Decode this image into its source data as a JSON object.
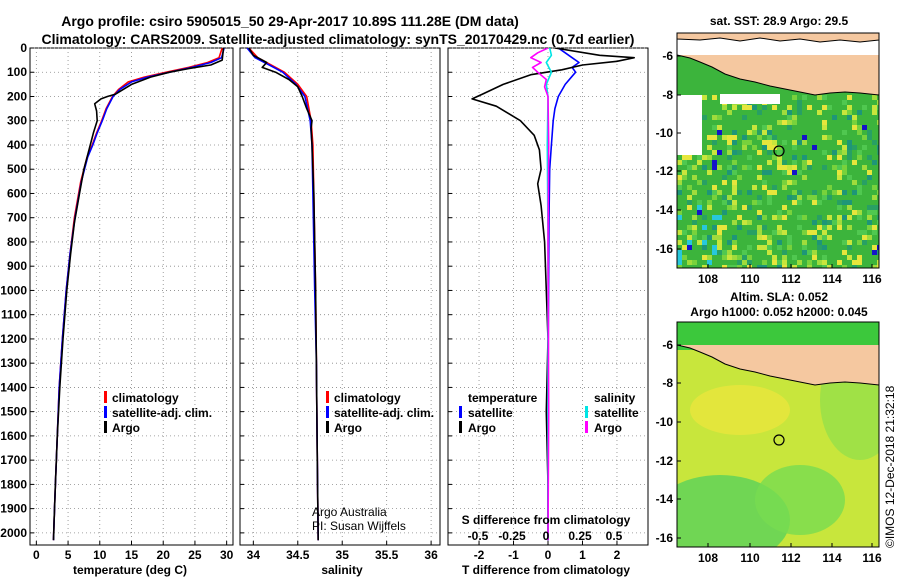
{
  "header": {
    "title1": "Argo profile: csiro 5905015_50 29-Apr-2017 10.89S 111.28E (DM data)",
    "title2": "Climatology: CARS2009. Satellite-adjusted climatology: synTS_20170429.nc (0.7d earlier)"
  },
  "colors": {
    "climatology": "#ff0000",
    "satellite": "#0000ff",
    "argo": "#000000",
    "salinity_sat": "#00e5e5",
    "salinity_argo": "#ff00ff",
    "land": "#f5c8a0"
  },
  "depth_axis": {
    "ticks": [
      0,
      100,
      200,
      300,
      400,
      500,
      600,
      700,
      800,
      900,
      1000,
      1100,
      1200,
      1300,
      1400,
      1500,
      1600,
      1700,
      1800,
      1900,
      2000
    ],
    "ylim": [
      2050,
      0
    ]
  },
  "panel_temp": {
    "xlabel": "temperature (deg C)",
    "xticks": [
      "0",
      "5",
      "10",
      "15",
      "20",
      "25",
      "30"
    ],
    "legend": [
      "climatology",
      "satellite-adj. clim.",
      "Argo"
    ]
  },
  "panel_sal": {
    "xlabel": "salinity",
    "xticks": [
      "34",
      "34.5",
      "35",
      "35.5",
      "36"
    ],
    "legend": [
      "climatology",
      "satellite-adj. clim.",
      "Argo"
    ],
    "credit1": "Argo Australia",
    "credit2": "PI: Susan Wijffels"
  },
  "panel_diff": {
    "xlabel": "T difference from climatology",
    "xticks": [
      "-2",
      "-1",
      "0",
      "1",
      "2"
    ],
    "s_label": "S difference from climatology",
    "s_ticks": [
      "-0.5",
      "-0.25",
      "0",
      "0.25",
      "0.5"
    ],
    "legend_t_title": "temperature",
    "legend_s_title": "salinity",
    "legend_sat": "satellite",
    "legend_argo": "Argo"
  },
  "map_sst": {
    "title": "sat. SST: 28.9 Argo: 29.5",
    "xticks": [
      "108",
      "110",
      "112",
      "114",
      "116"
    ],
    "yticks": [
      "-6",
      "-8",
      "-10",
      "-12",
      "-14",
      "-16"
    ]
  },
  "map_sla": {
    "title1": "Altim. SLA: 0.052",
    "title2": "Argo h1000: 0.052 h2000: 0.045",
    "xticks": [
      "108",
      "110",
      "112",
      "114",
      "116"
    ],
    "yticks": [
      "-6",
      "-8",
      "-10",
      "-12",
      "-14",
      "-16"
    ]
  },
  "watermark": "©IMOS 12-Dec-2018 21:32:18",
  "chart_data": [
    {
      "type": "line",
      "title": "",
      "xlabel": "temperature (deg C)",
      "ylabel": "",
      "xlim": [
        -1,
        31
      ],
      "ylim": [
        2050,
        0
      ],
      "series": [
        {
          "name": "climatology",
          "color": "#ff0000",
          "x": [
            29.3,
            28.8,
            27.0,
            24.0,
            20.5,
            17.0,
            14.5,
            13.0,
            12.0,
            11.0,
            10.3,
            9.5,
            8.8,
            8.0,
            7.0,
            6.0,
            5.3,
            4.7,
            4.1,
            3.6,
            3.3,
            3.0,
            2.8,
            2.7
          ],
          "y": [
            0,
            40,
            60,
            80,
            100,
            120,
            140,
            170,
            200,
            250,
            300,
            350,
            400,
            450,
            550,
            700,
            850,
            1000,
            1200,
            1400,
            1600,
            1800,
            1950,
            2030
          ]
        },
        {
          "name": "satellite-adj. clim.",
          "color": "#0000ff",
          "x": [
            29.6,
            29.2,
            27.5,
            24.5,
            21.0,
            17.5,
            15.0,
            13.2,
            12.1,
            11.1,
            10.4,
            9.6,
            8.9,
            8.1,
            7.1,
            6.1,
            5.3,
            4.7,
            4.1,
            3.6,
            3.3,
            3.0,
            2.8,
            2.7
          ],
          "y": [
            0,
            40,
            60,
            80,
            100,
            120,
            140,
            170,
            200,
            250,
            300,
            350,
            400,
            450,
            550,
            700,
            850,
            1000,
            1200,
            1400,
            1600,
            1800,
            1950,
            2030
          ]
        },
        {
          "name": "Argo",
          "color": "#000000",
          "x": [
            29.5,
            29.3,
            27.5,
            24.0,
            21.0,
            18.0,
            15.0,
            12.5,
            11.2,
            10.2,
            9.2,
            9.5,
            9.6,
            9.0,
            8.3,
            7.5,
            6.8,
            6.0,
            5.4,
            4.8,
            4.2,
            3.7,
            3.3,
            3.0,
            2.8,
            2.7
          ],
          "y": [
            0,
            50,
            70,
            85,
            100,
            120,
            150,
            190,
            200,
            210,
            230,
            260,
            300,
            350,
            420,
            500,
            600,
            720,
            850,
            1000,
            1200,
            1400,
            1600,
            1800,
            1950,
            2030
          ]
        }
      ]
    },
    {
      "type": "line",
      "title": "",
      "xlabel": "salinity",
      "ylabel": "",
      "xlim": [
        33.85,
        36.1
      ],
      "ylim": [
        2050,
        0
      ],
      "series": [
        {
          "name": "climatology",
          "color": "#ff0000",
          "x": [
            33.95,
            34.05,
            34.2,
            34.35,
            34.5,
            34.6,
            34.65,
            34.67,
            34.68,
            34.69,
            34.7,
            34.71,
            34.72,
            34.73
          ],
          "y": [
            0,
            40,
            70,
            100,
            150,
            200,
            300,
            400,
            600,
            800,
            1000,
            1300,
            1700,
            2030
          ]
        },
        {
          "name": "satellite-adj. clim.",
          "color": "#0000ff",
          "x": [
            33.93,
            34.02,
            34.18,
            34.33,
            34.48,
            34.58,
            34.64,
            34.66,
            34.67,
            34.68,
            34.69,
            34.71,
            34.72,
            34.73
          ],
          "y": [
            0,
            40,
            70,
            100,
            150,
            200,
            300,
            400,
            600,
            800,
            1000,
            1300,
            1700,
            2030
          ]
        },
        {
          "name": "Argo",
          "color": "#000000",
          "x": [
            33.95,
            34.0,
            34.15,
            34.1,
            34.25,
            34.4,
            34.5,
            34.55,
            34.6,
            34.66,
            34.65,
            34.66,
            34.67,
            34.68,
            34.69,
            34.7,
            34.71,
            34.72,
            34.73
          ],
          "y": [
            0,
            30,
            60,
            80,
            100,
            130,
            160,
            200,
            250,
            300,
            330,
            400,
            500,
            600,
            800,
            1000,
            1300,
            1700,
            2030
          ]
        }
      ]
    },
    {
      "type": "line",
      "title": "",
      "xlabel": "T difference from climatology",
      "ylabel": "",
      "xlim": [
        -2.9,
        2.9
      ],
      "ylim": [
        2050,
        0
      ],
      "series": [
        {
          "name": "temperature satellite",
          "color": "#0000ff",
          "x": [
            0.3,
            0.5,
            0.7,
            0.9,
            0.7,
            0.8,
            0.5,
            0.3,
            0.2,
            0.15,
            0.1,
            0.05,
            0.03,
            0.02,
            0.01,
            0.0,
            0.0
          ],
          "y": [
            0,
            20,
            40,
            60,
            80,
            100,
            150,
            200,
            250,
            300,
            400,
            500,
            700,
            900,
            1200,
            1600,
            2030
          ]
        },
        {
          "name": "temperature Argo",
          "color": "#000000",
          "x": [
            0.2,
            1.5,
            2.5,
            2.0,
            1.0,
            0.4,
            -0.5,
            -1.3,
            -1.9,
            -2.2,
            -1.5,
            -0.8,
            -0.4,
            -0.25,
            -0.2,
            -0.3,
            -0.2,
            -0.1,
            -0.05,
            0.0,
            -0.05,
            0.0,
            0.0
          ],
          "y": [
            0,
            30,
            40,
            55,
            70,
            90,
            110,
            150,
            190,
            210,
            240,
            300,
            360,
            420,
            500,
            560,
            650,
            800,
            1000,
            1200,
            1500,
            1800,
            2030
          ]
        },
        {
          "name": "salinity satellite",
          "color": "#00e5e5",
          "x": [
            0.05,
            0.1,
            -0.05,
            0.1,
            -0.05,
            0.0,
            -0.02,
            0.0,
            0.0
          ],
          "y": [
            0,
            30,
            60,
            100,
            150,
            200,
            400,
            800,
            2030
          ]
        },
        {
          "name": "salinity Argo",
          "color": "#ff00ff",
          "x": [
            0.0,
            -0.3,
            -0.5,
            -0.2,
            -0.45,
            -0.3,
            -0.05,
            -0.1,
            0.0,
            0.02,
            0.0,
            0.02,
            0.0
          ],
          "y": [
            0,
            20,
            40,
            60,
            80,
            100,
            130,
            160,
            200,
            400,
            800,
            1500,
            2030
          ]
        }
      ]
    }
  ]
}
